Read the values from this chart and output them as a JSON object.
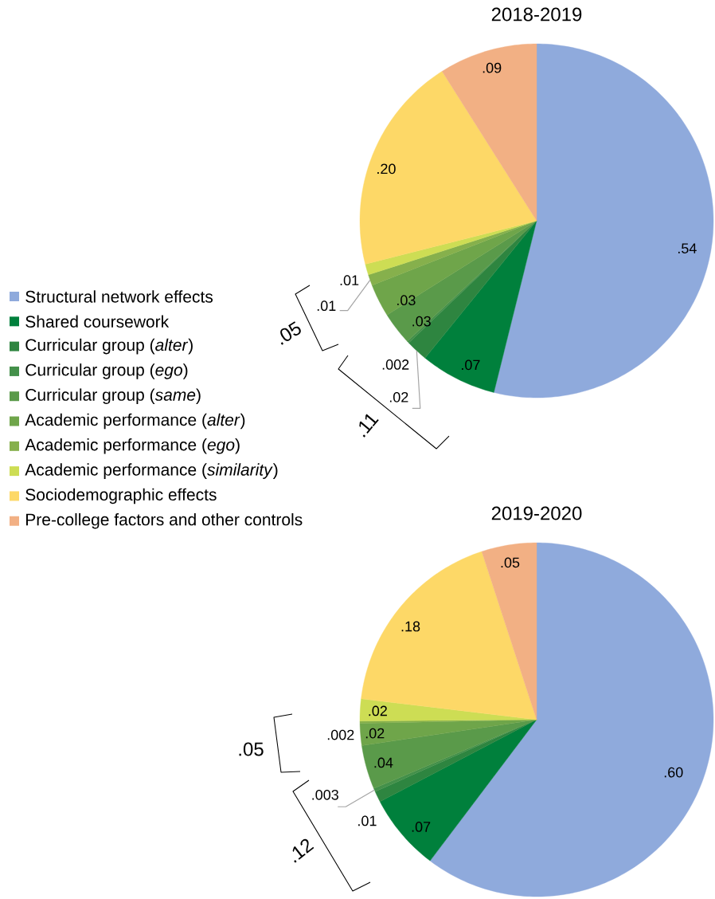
{
  "chart_data": {
    "type": "pie",
    "categories": [
      "Structural network effects",
      "Shared coursework",
      "Curricular group (*alter*)",
      "Curricular group (*ego*)",
      "Curricular group (*same*)",
      "Academic performance (*alter*)",
      "Academic performance (*ego*)",
      "Academic performance (*similarity*)",
      "Sociodemographic effects",
      "Pre-college factors and other controls"
    ],
    "colors": [
      "#8faadc",
      "#00803c",
      "#2e8540",
      "#44904a",
      "#5a9a4a",
      "#6fa54a",
      "#86b04c",
      "#cddd54",
      "#fdd867",
      "#f2b084"
    ],
    "series": [
      {
        "name": "2018-2019",
        "values": [
          0.54,
          0.07,
          0.02,
          0.002,
          0.03,
          0.03,
          0.01,
          0.01,
          0.2,
          0.09
        ],
        "value_labels": [
          ".54",
          ".07",
          ".02",
          ".002",
          ".03",
          ".03",
          ".01",
          ".01",
          ".20",
          ".09"
        ]
      },
      {
        "name": "2019-2020",
        "values": [
          0.6,
          0.07,
          0.01,
          0.003,
          0.04,
          0.02,
          0.002,
          0.02,
          0.18,
          0.05
        ],
        "value_labels": [
          ".60",
          ".07",
          ".01",
          ".003",
          ".04",
          ".02",
          ".002",
          ".02",
          ".18",
          ".05"
        ]
      }
    ],
    "legend": "left",
    "annotations": [
      ".05",
      ".11",
      ".05",
      ".12"
    ]
  }
}
